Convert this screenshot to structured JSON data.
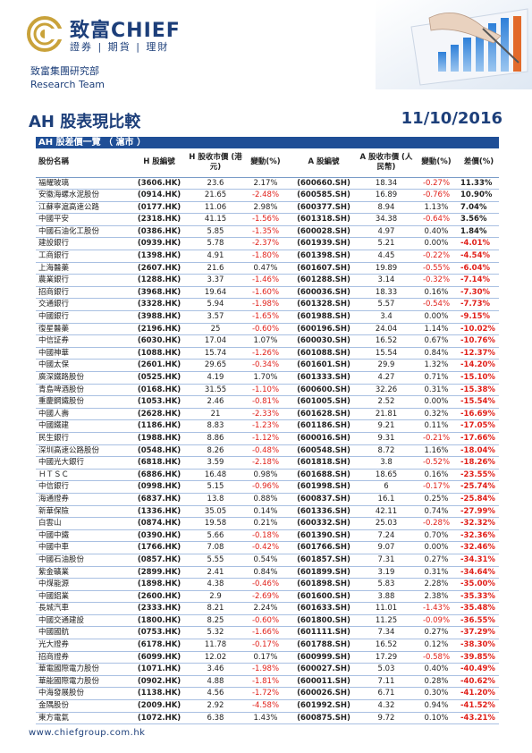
{
  "header": {
    "brand_cn": "致富",
    "brand_en": "CHIEF",
    "brand_sub": "證券 | 期貨 | 理財",
    "research_cn": "致富集團研究部",
    "research_en": "Research Team",
    "hero_icon": "chart-hand-illustration",
    "accent_color": "#1d3f7a",
    "gold_color": "#c9a23a"
  },
  "title": "AH 股表現比較",
  "date": "11/10/2016",
  "section_label": "AH 股差價一覽 （ 滬市 ）",
  "columns": [
    "股份名稱",
    "H 股編號",
    "H 股收市價 (港元)",
    "變動(%)",
    "A 股編號",
    "A 股收市價 (人民幣)",
    "變動(%)",
    "差價(%)"
  ],
  "rows": [
    [
      "福耀玻璃",
      "(3606.HK)",
      "23.6",
      "2.17%",
      "(600660.SH)",
      "18.34",
      "-0.27%",
      "11.33%"
    ],
    [
      "安徽海螺水泥股份",
      "(0914.HK)",
      "21.65",
      "-2.48%",
      "(600585.SH)",
      "16.89",
      "-0.76%",
      "10.90%"
    ],
    [
      "江蘇寧滬高速公路",
      "(0177.HK)",
      "11.06",
      "2.98%",
      "(600377.SH)",
      "8.94",
      "1.13%",
      "7.04%"
    ],
    [
      "中國平安",
      "(2318.HK)",
      "41.15",
      "-1.56%",
      "(601318.SH)",
      "34.38",
      "-0.64%",
      "3.56%"
    ],
    [
      "中國石油化工股份",
      "(0386.HK)",
      "5.85",
      "-1.35%",
      "(600028.SH)",
      "4.97",
      "0.40%",
      "1.84%"
    ],
    [
      "建設銀行",
      "(0939.HK)",
      "5.78",
      "-2.37%",
      "(601939.SH)",
      "5.21",
      "0.00%",
      "-4.01%"
    ],
    [
      "工商銀行",
      "(1398.HK)",
      "4.91",
      "-1.80%",
      "(601398.SH)",
      "4.45",
      "-0.22%",
      "-4.54%"
    ],
    [
      "上海醫藥",
      "(2607.HK)",
      "21.6",
      "0.47%",
      "(601607.SH)",
      "19.89",
      "-0.55%",
      "-6.04%"
    ],
    [
      "農業銀行",
      "(1288.HK)",
      "3.37",
      "-1.46%",
      "(601288.SH)",
      "3.14",
      "-0.32%",
      "-7.14%"
    ],
    [
      "招商銀行",
      "(3968.HK)",
      "19.64",
      "-1.60%",
      "(600036.SH)",
      "18.33",
      "0.16%",
      "-7.30%"
    ],
    [
      "交通銀行",
      "(3328.HK)",
      "5.94",
      "-1.98%",
      "(601328.SH)",
      "5.57",
      "-0.54%",
      "-7.73%"
    ],
    [
      "中國銀行",
      "(3988.HK)",
      "3.57",
      "-1.65%",
      "(601988.SH)",
      "3.4",
      "0.00%",
      "-9.15%"
    ],
    [
      "復星醫藥",
      "(2196.HK)",
      "25",
      "-0.60%",
      "(600196.SH)",
      "24.04",
      "1.14%",
      "-10.02%"
    ],
    [
      "中信証券",
      "(6030.HK)",
      "17.04",
      "1.07%",
      "(600030.SH)",
      "16.52",
      "0.67%",
      "-10.76%"
    ],
    [
      "中國神華",
      "(1088.HK)",
      "15.74",
      "-1.26%",
      "(601088.SH)",
      "15.54",
      "0.84%",
      "-12.37%"
    ],
    [
      "中國太保",
      "(2601.HK)",
      "29.65",
      "-0.34%",
      "(601601.SH)",
      "29.9",
      "1.32%",
      "-14.20%"
    ],
    [
      "廣深鐵路股份",
      "(0525.HK)",
      "4.19",
      "1.70%",
      "(601333.SH)",
      "4.27",
      "0.71%",
      "-15.10%"
    ],
    [
      "青島啤酒股份",
      "(0168.HK)",
      "31.55",
      "-1.10%",
      "(600600.SH)",
      "32.26",
      "0.31%",
      "-15.38%"
    ],
    [
      "重慶鋼鐵股份",
      "(1053.HK)",
      "2.46",
      "-0.81%",
      "(601005.SH)",
      "2.52",
      "0.00%",
      "-15.54%"
    ],
    [
      "中國人壽",
      "(2628.HK)",
      "21",
      "-2.33%",
      "(601628.SH)",
      "21.81",
      "0.32%",
      "-16.69%"
    ],
    [
      "中國鐵建",
      "(1186.HK)",
      "8.83",
      "-1.23%",
      "(601186.SH)",
      "9.21",
      "0.11%",
      "-17.05%"
    ],
    [
      "民生銀行",
      "(1988.HK)",
      "8.86",
      "-1.12%",
      "(600016.SH)",
      "9.31",
      "-0.21%",
      "-17.66%"
    ],
    [
      "深圳高速公路股份",
      "(0548.HK)",
      "8.26",
      "-0.48%",
      "(600548.SH)",
      "8.72",
      "1.16%",
      "-18.04%"
    ],
    [
      "中國光大銀行",
      "(6818.HK)",
      "3.59",
      "-2.18%",
      "(601818.SH)",
      "3.8",
      "-0.52%",
      "-18.26%"
    ],
    [
      "ＨＴＳＣ",
      "(6886.HK)",
      "16.48",
      "0.98%",
      "(601688.SH)",
      "18.65",
      "0.16%",
      "-23.55%"
    ],
    [
      "中信銀行",
      "(0998.HK)",
      "5.15",
      "-0.96%",
      "(601998.SH)",
      "6",
      "-0.17%",
      "-25.74%"
    ],
    [
      "海通證券",
      "(6837.HK)",
      "13.8",
      "0.88%",
      "(600837.SH)",
      "16.1",
      "0.25%",
      "-25.84%"
    ],
    [
      "新華保險",
      "(1336.HK)",
      "35.05",
      "0.14%",
      "(601336.SH)",
      "42.11",
      "0.74%",
      "-27.99%"
    ],
    [
      "白雲山",
      "(0874.HK)",
      "19.58",
      "0.21%",
      "(600332.SH)",
      "25.03",
      "-0.28%",
      "-32.32%"
    ],
    [
      "中國中鐵",
      "(0390.HK)",
      "5.66",
      "-0.18%",
      "(601390.SH)",
      "7.24",
      "0.70%",
      "-32.36%"
    ],
    [
      "中國中車",
      "(1766.HK)",
      "7.08",
      "-0.42%",
      "(601766.SH)",
      "9.07",
      "0.00%",
      "-32.46%"
    ],
    [
      "中國石油股份",
      "(0857.HK)",
      "5.55",
      "0.54%",
      "(601857.SH)",
      "7.31",
      "0.27%",
      "-34.31%"
    ],
    [
      "紫金礦業",
      "(2899.HK)",
      "2.41",
      "0.84%",
      "(601899.SH)",
      "3.19",
      "0.31%",
      "-34.64%"
    ],
    [
      "中煤能源",
      "(1898.HK)",
      "4.38",
      "-0.46%",
      "(601898.SH)",
      "5.83",
      "2.28%",
      "-35.00%"
    ],
    [
      "中國鋁業",
      "(2600.HK)",
      "2.9",
      "-2.69%",
      "(601600.SH)",
      "3.88",
      "2.38%",
      "-35.33%"
    ],
    [
      "長城汽車",
      "(2333.HK)",
      "8.21",
      "2.24%",
      "(601633.SH)",
      "11.01",
      "-1.43%",
      "-35.48%"
    ],
    [
      "中國交通建設",
      "(1800.HK)",
      "8.25",
      "-0.60%",
      "(601800.SH)",
      "11.25",
      "-0.09%",
      "-36.55%"
    ],
    [
      "中國國航",
      "(0753.HK)",
      "5.32",
      "-1.66%",
      "(601111.SH)",
      "7.34",
      "0.27%",
      "-37.29%"
    ],
    [
      "光大證券",
      "(6178.HK)",
      "11.78",
      "-0.17%",
      "(601788.SH)",
      "16.52",
      "0.12%",
      "-38.30%"
    ],
    [
      "招商證券",
      "(6099.HK)",
      "12.02",
      "0.17%",
      "(600999.SH)",
      "17.29",
      "-0.58%",
      "-39.85%"
    ],
    [
      "華電國際電力股份",
      "(1071.HK)",
      "3.46",
      "-1.98%",
      "(600027.SH)",
      "5.03",
      "0.40%",
      "-40.49%"
    ],
    [
      "華能國際電力股份",
      "(0902.HK)",
      "4.88",
      "-1.81%",
      "(600011.SH)",
      "7.11",
      "0.28%",
      "-40.62%"
    ],
    [
      "中海發展股份",
      "(1138.HK)",
      "4.56",
      "-1.72%",
      "(600026.SH)",
      "6.71",
      "0.30%",
      "-41.20%"
    ],
    [
      "金隅股份",
      "(2009.HK)",
      "2.92",
      "-4.58%",
      "(601992.SH)",
      "4.32",
      "0.94%",
      "-41.52%"
    ],
    [
      "東方電氣",
      "(1072.HK)",
      "6.38",
      "1.43%",
      "(600875.SH)",
      "9.72",
      "0.10%",
      "-43.21%"
    ]
  ],
  "footer": "www.chiefgroup.com.hk",
  "colors": {
    "negative": "#e0201a",
    "header_bar": "#1f4e96",
    "row_line": "#a9c0e2"
  }
}
